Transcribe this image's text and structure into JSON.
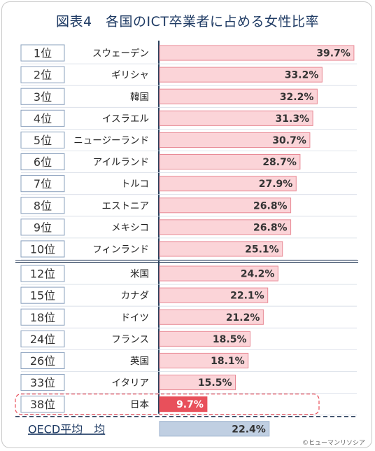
{
  "title": "図表4　各国のICT卒業者に占める女性比率",
  "credit": "©ヒューマンリソシア",
  "colors": {
    "bar": "#fbd4d8",
    "bar_edge": "#e88a96",
    "highlight": "#e8505b",
    "avg": "#c0cfe2",
    "rank_border": "#8aa0bd",
    "title": "#1f3b64"
  },
  "chart_data": {
    "type": "bar",
    "orientation": "horizontal",
    "title": "図表4　各国のICT卒業者に占める女性比率",
    "unit": "%",
    "xlim": [
      0,
      45
    ],
    "rows": [
      {
        "rank": "1位",
        "country": "スウェーデン",
        "value": 39.7,
        "label": "39.7%"
      },
      {
        "rank": "2位",
        "country": "ギリシャ",
        "value": 33.2,
        "label": "33.2%"
      },
      {
        "rank": "3位",
        "country": "韓国",
        "value": 32.2,
        "label": "32.2%"
      },
      {
        "rank": "4位",
        "country": "イスラエル",
        "value": 31.3,
        "label": "31.3%"
      },
      {
        "rank": "5位",
        "country": "ニュージーランド",
        "value": 30.7,
        "label": "30.7%"
      },
      {
        "rank": "6位",
        "country": "アイルランド",
        "value": 28.7,
        "label": "28.7%"
      },
      {
        "rank": "7位",
        "country": "トルコ",
        "value": 27.9,
        "label": "27.9%"
      },
      {
        "rank": "8位",
        "country": "エストニア",
        "value": 26.8,
        "label": "26.8%"
      },
      {
        "rank": "9位",
        "country": "メキシコ",
        "value": 26.8,
        "label": "26.8%"
      },
      {
        "rank": "10位",
        "country": "フィンランド",
        "value": 25.1,
        "label": "25.1%"
      },
      {
        "rank": "12位",
        "country": "米国",
        "value": 24.2,
        "label": "24.2%"
      },
      {
        "rank": "15位",
        "country": "カナダ",
        "value": 22.1,
        "label": "22.1%"
      },
      {
        "rank": "18位",
        "country": "ドイツ",
        "value": 21.2,
        "label": "21.2%"
      },
      {
        "rank": "24位",
        "country": "フランス",
        "value": 18.5,
        "label": "18.5%"
      },
      {
        "rank": "26位",
        "country": "英国",
        "value": 18.1,
        "label": "18.1%"
      },
      {
        "rank": "33位",
        "country": "イタリア",
        "value": 15.5,
        "label": "15.5%"
      },
      {
        "rank": "38位",
        "country": "日本",
        "value": 9.7,
        "label": "9.7%",
        "highlight": true
      },
      {
        "rank": "",
        "country": "OECD平均　均",
        "value": 22.4,
        "label": "22.4%",
        "average": true
      }
    ]
  }
}
